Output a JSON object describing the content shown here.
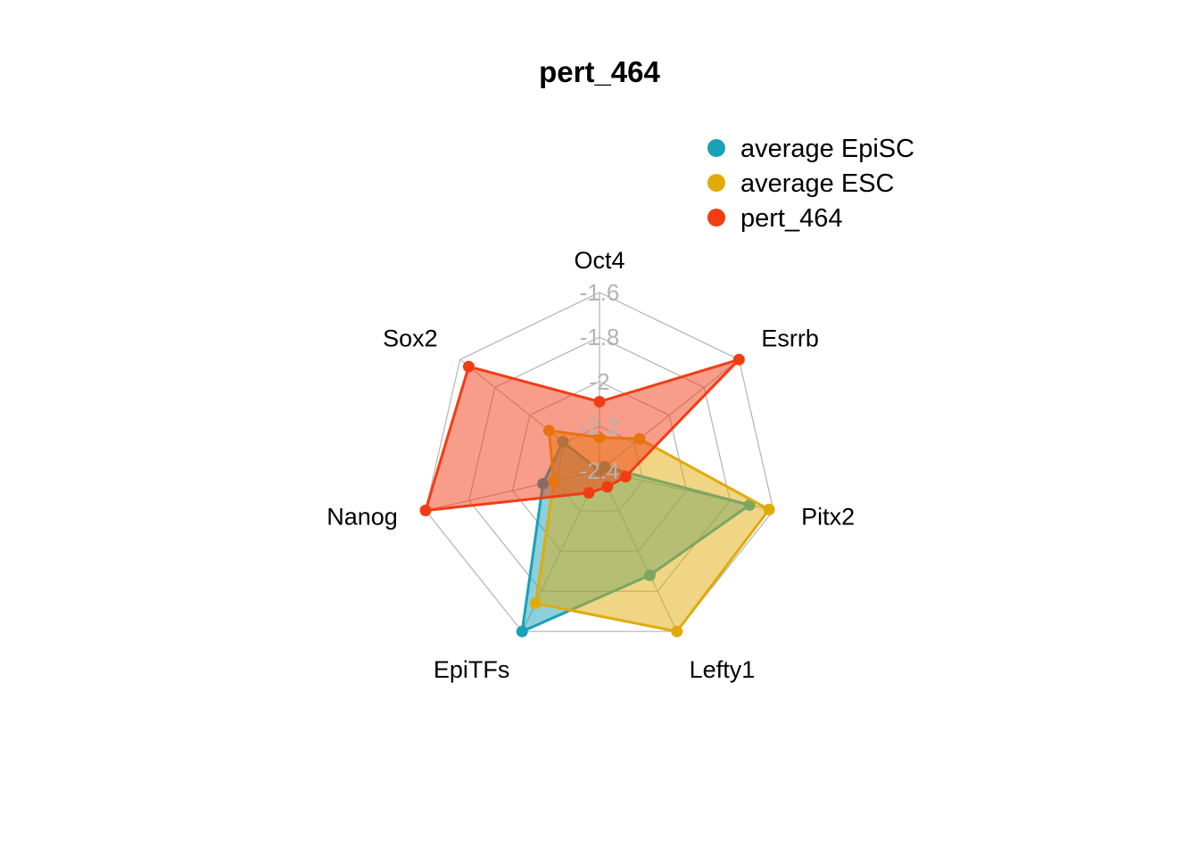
{
  "chart_data": {
    "type": "radar",
    "title": "pert_464",
    "axes": [
      "Oct4",
      "Esrrb",
      "Pitx2",
      "Lefty1",
      "EpiTFs",
      "Nanog",
      "Sox2"
    ],
    "rlim": [
      -2.4,
      -1.6
    ],
    "ticks": [
      -1.6,
      -1.8,
      -2,
      -2.2,
      -2.4
    ],
    "tick_labels": [
      "-1.6",
      "-1.8",
      "-2",
      "-2.2",
      "-2.4"
    ],
    "grid": true,
    "legend_position": "top-right",
    "series": [
      {
        "name": "average EpiSC",
        "color": "#17a2b8",
        "values": [
          -2.4,
          -2.37,
          -1.71,
          -1.88,
          -1.6,
          -2.14,
          -2.19
        ]
      },
      {
        "name": "average ESC",
        "color": "#e0ab0a",
        "values": [
          -2.25,
          -2.17,
          -1.62,
          -1.6,
          -1.74,
          -2.19,
          -2.11
        ]
      },
      {
        "name": "pert_464",
        "color": "#f23c14",
        "values": [
          -2.09,
          -1.6,
          -2.28,
          -2.32,
          -2.29,
          -1.6,
          -1.65
        ]
      }
    ]
  }
}
